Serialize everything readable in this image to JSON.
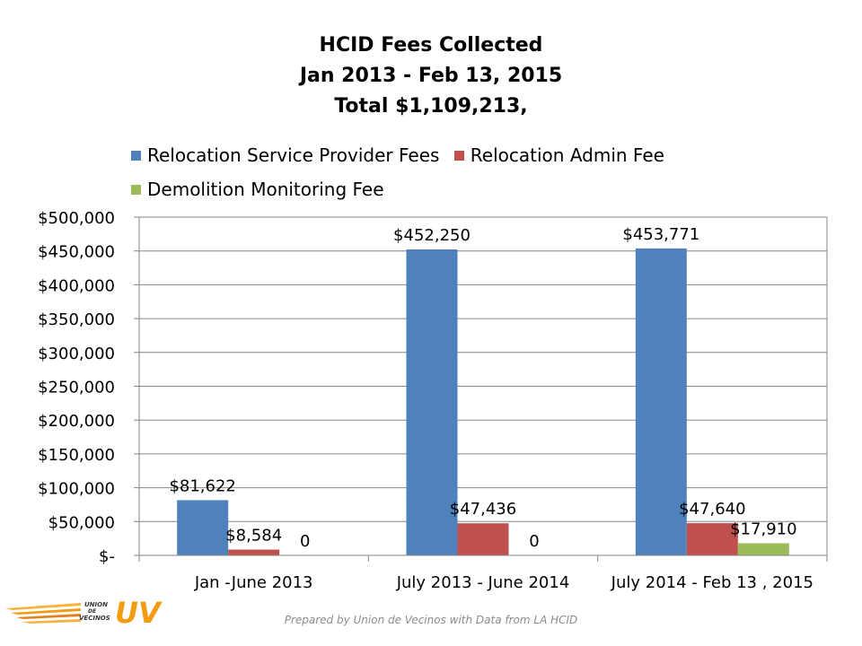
{
  "chart_data": {
    "type": "bar",
    "title_lines": [
      "HCID Fees Collected",
      "Jan 2013 - Feb 13, 2015",
      "Total $1,109,213,"
    ],
    "categories": [
      "Jan -June 2013",
      "July 2013 - June 2014",
      "July 2014 - Feb 13 , 2015"
    ],
    "series": [
      {
        "name": "Relocation Service Provider Fees",
        "color": "#4f81bd",
        "values": [
          81622,
          452250,
          453771
        ],
        "labels": [
          "$81,622",
          "$452,250",
          "$453,771"
        ]
      },
      {
        "name": "Relocation Admin Fee",
        "color": "#c0504d",
        "values": [
          8584,
          47436,
          47640
        ],
        "labels": [
          "$8,584",
          "$47,436",
          "$47,640"
        ]
      },
      {
        "name": "Demolition Monitoring Fee",
        "color": "#9bbb59",
        "values": [
          0,
          0,
          17910
        ],
        "labels": [
          "0",
          "0",
          "$17,910"
        ]
      }
    ],
    "y_ticks": [
      {
        "value": 0,
        "label": "$-"
      },
      {
        "value": 50000,
        "label": "$50,000"
      },
      {
        "value": 100000,
        "label": "$100,000"
      },
      {
        "value": 150000,
        "label": "$150,000"
      },
      {
        "value": 200000,
        "label": "$200,000"
      },
      {
        "value": 250000,
        "label": "$250,000"
      },
      {
        "value": 300000,
        "label": "$300,000"
      },
      {
        "value": 350000,
        "label": "$350,000"
      },
      {
        "value": 400000,
        "label": "$400,000"
      },
      {
        "value": 450000,
        "label": "$450,000"
      },
      {
        "value": 500000,
        "label": "$500,000"
      }
    ],
    "ylim": [
      0,
      500000
    ],
    "grid": true,
    "legend_position": "top"
  },
  "footer": "Prepared by Union de Vecinos with Data from LA HCID",
  "logo": {
    "text_lines": [
      "UNION",
      "DE",
      "VECINOS"
    ],
    "mark": "UV",
    "color": "#f39c12"
  }
}
